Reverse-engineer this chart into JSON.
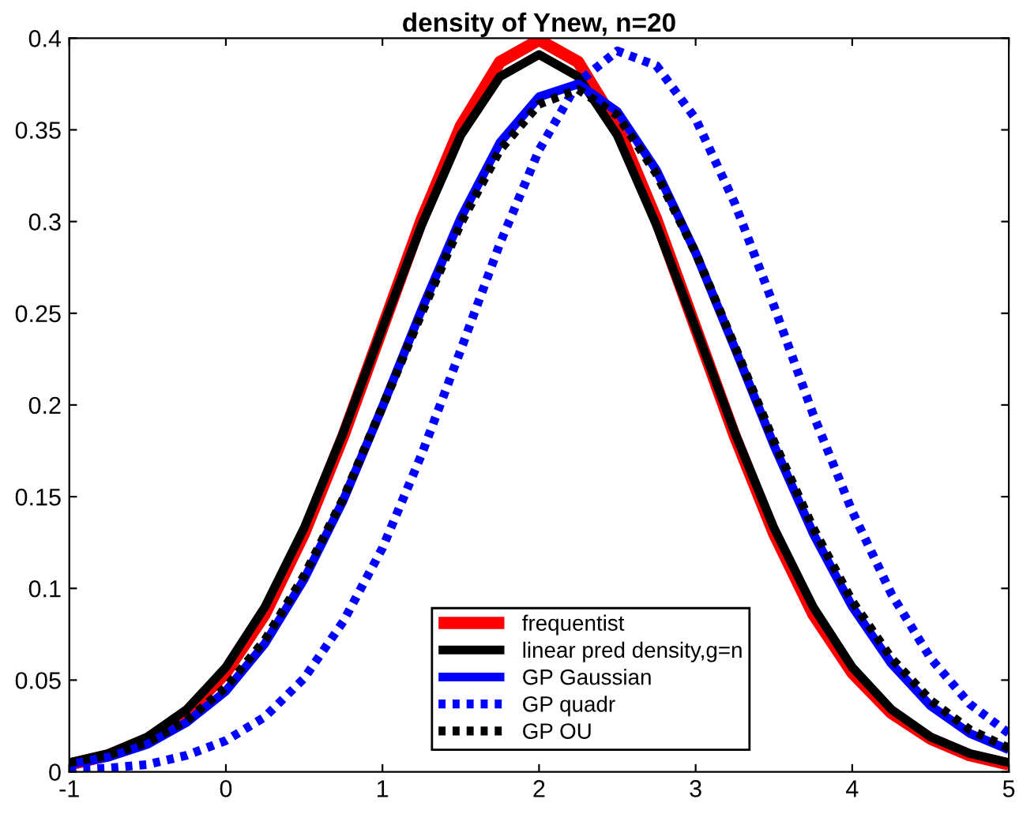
{
  "chart_data": {
    "type": "line",
    "title": "density of Ynew, n=20",
    "x": [
      -1,
      -0.75,
      -0.5,
      -0.25,
      0,
      0.25,
      0.5,
      0.75,
      1,
      1.25,
      1.5,
      1.75,
      2,
      2.25,
      2.5,
      2.75,
      3,
      3.25,
      3.5,
      3.75,
      4,
      4.25,
      4.5,
      4.75,
      5
    ],
    "series": [
      {
        "name": "frequentist",
        "color": "#ff0000",
        "line_style": "solid",
        "values": [
          0.004,
          0.009,
          0.018,
          0.032,
          0.054,
          0.086,
          0.13,
          0.183,
          0.242,
          0.301,
          0.352,
          0.387,
          0.399,
          0.387,
          0.352,
          0.301,
          0.242,
          0.183,
          0.13,
          0.086,
          0.054,
          0.032,
          0.018,
          0.009,
          0.004
        ]
      },
      {
        "name": "linear pred density,g=n",
        "color": "#000000",
        "line_style": "solid",
        "values": [
          0.005,
          0.01,
          0.019,
          0.034,
          0.057,
          0.09,
          0.133,
          0.185,
          0.242,
          0.298,
          0.347,
          0.379,
          0.391,
          0.379,
          0.347,
          0.298,
          0.242,
          0.185,
          0.133,
          0.09,
          0.057,
          0.034,
          0.019,
          0.01,
          0.005
        ]
      },
      {
        "name": "GP Gaussian",
        "color": "#0000ff",
        "line_style": "solid",
        "values": [
          0.004,
          0.008,
          0.015,
          0.027,
          0.044,
          0.07,
          0.105,
          0.148,
          0.199,
          0.252,
          0.302,
          0.343,
          0.368,
          0.375,
          0.36,
          0.328,
          0.283,
          0.231,
          0.178,
          0.13,
          0.09,
          0.059,
          0.036,
          0.021,
          0.012
        ]
      },
      {
        "name": "GP quadr",
        "color": "#0000ff",
        "line_style": "dotted",
        "values": [
          0.001,
          0.002,
          0.004,
          0.009,
          0.017,
          0.03,
          0.051,
          0.082,
          0.122,
          0.173,
          0.23,
          0.288,
          0.339,
          0.376,
          0.393,
          0.385,
          0.356,
          0.31,
          0.254,
          0.195,
          0.142,
          0.097,
          0.062,
          0.037,
          0.021
        ]
      },
      {
        "name": "GP OU",
        "color": "#000000",
        "line_style": "dotted",
        "values": [
          0.005,
          0.009,
          0.016,
          0.028,
          0.046,
          0.072,
          0.107,
          0.149,
          0.199,
          0.25,
          0.299,
          0.339,
          0.364,
          0.372,
          0.358,
          0.326,
          0.283,
          0.232,
          0.18,
          0.133,
          0.093,
          0.062,
          0.039,
          0.023,
          0.013
        ]
      }
    ],
    "xlim": [
      -1,
      5
    ],
    "xticks": [
      -1,
      0,
      1,
      2,
      3,
      4,
      5
    ],
    "ylim": [
      0,
      0.4
    ],
    "yticks": [
      0,
      0.05,
      0.1,
      0.15,
      0.2,
      0.25,
      0.3,
      0.35,
      0.4
    ],
    "grid": false,
    "legend": "bottom",
    "marker": "none"
  }
}
